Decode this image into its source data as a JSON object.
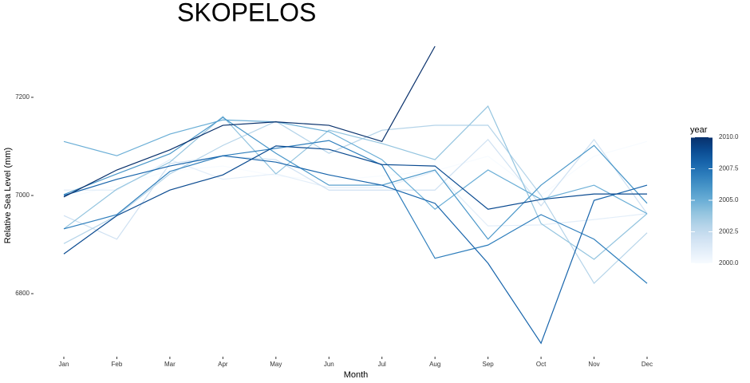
{
  "chart_data": {
    "type": "line",
    "title": "SKOPELOS",
    "x_label": "Month",
    "y_label": "Relative Sea Level (mm)",
    "categories": [
      "Jan",
      "Feb",
      "Mar",
      "Apr",
      "May",
      "Jun",
      "Jul",
      "Aug",
      "Sep",
      "Oct",
      "Nov",
      "Dec"
    ],
    "ylim": [
      6670,
      7330
    ],
    "yticks": [
      6800,
      7000,
      7200
    ],
    "grid": false,
    "series": [
      {
        "color": "#f7fbff",
        "values": [
          6995,
          7020,
          7050,
          7060,
          7040,
          7030,
          7040,
          7050,
          7080,
          7000,
          7080,
          7110
        ]
      },
      {
        "color": "#e3eef9",
        "values": [
          7011,
          7011,
          7073,
          7033,
          7044,
          7016,
          7016,
          7049,
          6938,
          6940,
          6951,
          6963
        ]
      },
      {
        "color": "#cfe1f2",
        "values": [
          6959,
          6911,
          7065,
          7080,
          7073,
          7011,
          7011,
          7011,
          7114,
          6979,
          7114,
          6963
        ]
      },
      {
        "color": "#b5d4e9",
        "values": [
          6902,
          6959,
          7044,
          7102,
          7151,
          7086,
          7133,
          7143,
          7143,
          7000,
          6821,
          6924
        ]
      },
      {
        "color": "#93c4df",
        "values": [
          6932,
          7013,
          7068,
          7161,
          7044,
          7133,
          7106,
          7073,
          7182,
          6943,
          6870,
          6963
        ]
      },
      {
        "color": "#6aaed6",
        "values": [
          7110,
          7081,
          7125,
          7154,
          7150,
          7130,
          7073,
          6972,
          7052,
          6992,
          7021,
          6963
        ]
      },
      {
        "color": "#4a97c9",
        "values": [
          7002,
          7044,
          7085,
          7159,
          7086,
          7021,
          7021,
          7052,
          6911,
          7021,
          7102,
          6984
        ]
      },
      {
        "color": "#2e7ebc",
        "values": [
          6932,
          6961,
          7049,
          7081,
          7096,
          7112,
          7062,
          6872,
          6899,
          6961,
          6911,
          6821
        ]
      },
      {
        "color": "#1764ab",
        "values": [
          7000,
          7033,
          7060,
          7081,
          7068,
          7042,
          7021,
          6984,
          6862,
          6699,
          6990,
          7021
        ]
      },
      {
        "color": "#0a4a90",
        "values": [
          6881,
          6959,
          7011,
          7042,
          7101,
          7094,
          7063,
          7060,
          6972,
          6992,
          7003,
          7003
        ]
      },
      {
        "color": "#08306b",
        "values": [
          6997,
          7052,
          7093,
          7143,
          7150,
          7143,
          7110,
          7304,
          null,
          null,
          null,
          null
        ]
      }
    ],
    "legend": {
      "title": "year",
      "range": [
        2000,
        2010
      ],
      "ticks": [
        {
          "value": 2000,
          "label": "2000.0"
        },
        {
          "value": 2002.5,
          "label": "2002.5"
        },
        {
          "value": 2005,
          "label": "2005.0"
        },
        {
          "value": 2007.5,
          "label": "2007.5"
        },
        {
          "value": 2010,
          "label": "2010.0"
        }
      ]
    }
  }
}
